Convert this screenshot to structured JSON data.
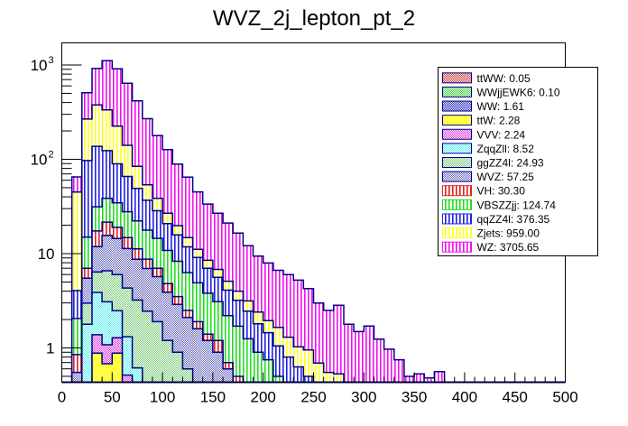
{
  "chart_data": {
    "type": "bar",
    "subtype": "stacked-histogram",
    "title": "WVZ_2j_lepton_pt_2",
    "xlabel": "",
    "ylabel": "",
    "xlim": [
      0,
      500
    ],
    "ylim": [
      0.44,
      1700
    ],
    "yscale": "log",
    "bin_width": 10,
    "x_ticks": [
      "0",
      "50",
      "100",
      "150",
      "200",
      "250",
      "300",
      "350",
      "400",
      "450",
      "500"
    ],
    "x_tick_values": [
      0,
      50,
      100,
      150,
      200,
      250,
      300,
      350,
      400,
      450,
      500
    ],
    "y_ticks": [
      {
        "value": 1,
        "label": "1",
        "exp": ""
      },
      {
        "value": 10,
        "label": "10",
        "exp": ""
      },
      {
        "value": 100,
        "label": "10",
        "exp": "2"
      },
      {
        "value": 1000,
        "label": "10",
        "exp": "3"
      }
    ],
    "legend_position": "top-right",
    "grid": false,
    "bins_low_edges": [
      0,
      10,
      20,
      30,
      40,
      50,
      60,
      70,
      80,
      90,
      100,
      110,
      120,
      130,
      140,
      150,
      160,
      170,
      180,
      190,
      200,
      210,
      220,
      230,
      240,
      250,
      260,
      270,
      280,
      290,
      300,
      310,
      320,
      330,
      340,
      350,
      360,
      370,
      380,
      390,
      400,
      410,
      420,
      430,
      440,
      450,
      460,
      470,
      480,
      490
    ],
    "series": [
      {
        "name": "ttWW",
        "legend": "ttWW: 0.05",
        "color": "#cc3333",
        "fill": "checker",
        "values": [
          0,
          0,
          0.01,
          0.01,
          0.01,
          0.01,
          0.005,
          0.005,
          0,
          0,
          0,
          0,
          0,
          0,
          0,
          0,
          0,
          0,
          0,
          0,
          0,
          0,
          0,
          0,
          0,
          0,
          0,
          0,
          0,
          0,
          0,
          0,
          0,
          0,
          0,
          0,
          0,
          0,
          0,
          0,
          0,
          0,
          0,
          0,
          0,
          0,
          0,
          0,
          0,
          0
        ]
      },
      {
        "name": "WWjjEWK6",
        "legend": "WWjjEWK6: 0.10",
        "color": "#33cc33",
        "fill": "checker",
        "values": [
          0,
          0,
          0.02,
          0.02,
          0.02,
          0.02,
          0.01,
          0.01,
          0,
          0,
          0,
          0,
          0,
          0,
          0,
          0,
          0,
          0,
          0,
          0,
          0,
          0,
          0,
          0,
          0,
          0,
          0,
          0,
          0,
          0,
          0,
          0,
          0,
          0,
          0,
          0,
          0,
          0,
          0,
          0,
          0,
          0,
          0,
          0,
          0,
          0,
          0,
          0,
          0,
          0
        ]
      },
      {
        "name": "WW",
        "legend": "WW: 1.61",
        "color": "#2222bb",
        "fill": "checker",
        "values": [
          0,
          0,
          0.2,
          0.3,
          0.3,
          0.3,
          0.2,
          0.2,
          0.1,
          0,
          0,
          0,
          0,
          0,
          0,
          0,
          0,
          0,
          0,
          0,
          0,
          0,
          0,
          0,
          0,
          0,
          0,
          0,
          0,
          0,
          0,
          0,
          0,
          0,
          0,
          0,
          0,
          0,
          0,
          0,
          0,
          0,
          0,
          0,
          0,
          0,
          0,
          0,
          0,
          0
        ]
      },
      {
        "name": "ttW",
        "legend": "ttW: 2.28",
        "color": "#ffff44",
        "fill": "solid",
        "values": [
          0,
          0,
          0,
          0.55,
          0.35,
          0.55,
          0,
          0,
          0,
          0,
          0,
          0,
          0,
          0,
          0,
          0,
          0,
          0,
          0,
          0,
          0,
          0,
          0,
          0,
          0,
          0,
          0,
          0,
          0,
          0,
          0,
          0,
          0,
          0,
          0,
          0,
          0,
          0,
          0,
          0,
          0,
          0,
          0,
          0,
          0,
          0,
          0,
          0,
          0,
          0
        ]
      },
      {
        "name": "VVV",
        "legend": "VVV: 2.24",
        "color": "#dd33dd",
        "fill": "checker",
        "values": [
          0,
          0,
          0.05,
          0.5,
          0.4,
          0.4,
          0.3,
          0.1,
          0.05,
          0,
          0,
          0,
          0,
          0,
          0,
          0,
          0,
          0,
          0,
          0,
          0,
          0,
          0,
          0,
          0,
          0,
          0,
          0,
          0,
          0,
          0,
          0,
          0,
          0,
          0,
          0,
          0,
          0,
          0,
          0,
          0,
          0,
          0,
          0,
          0,
          0,
          0,
          0,
          0,
          0
        ]
      },
      {
        "name": "ZqqZll",
        "legend": "ZqqZll: 8.52",
        "color": "#55eeee",
        "fill": "checker",
        "values": [
          0,
          0.05,
          1.5,
          2.5,
          2.0,
          1.2,
          0.8,
          0.3,
          0.1,
          0,
          0,
          0,
          0,
          0,
          0,
          0,
          0,
          0,
          0,
          0,
          0,
          0,
          0,
          0,
          0,
          0,
          0,
          0,
          0,
          0,
          0,
          0,
          0,
          0,
          0,
          0,
          0,
          0,
          0,
          0,
          0,
          0,
          0,
          0,
          0,
          0,
          0,
          0,
          0,
          0
        ]
      },
      {
        "name": "ggZZ4l",
        "legend": "ggZZ4l: 24.93",
        "color": "#77cc77",
        "fill": "checker",
        "values": [
          0,
          0.2,
          1.2,
          2.5,
          3.5,
          3.5,
          3.0,
          2.6,
          2.2,
          1.9,
          1.2,
          0.9,
          0.6,
          0.4,
          0.3,
          0.2,
          0.1,
          0.1,
          0.05,
          0.05,
          0,
          0,
          0,
          0,
          0,
          0,
          0,
          0,
          0,
          0,
          0,
          0,
          0,
          0,
          0,
          0,
          0,
          0,
          0,
          0,
          0,
          0,
          0,
          0,
          0,
          0,
          0,
          0,
          0,
          0
        ]
      },
      {
        "name": "WVZ",
        "legend": "WVZ: 57.25",
        "color": "#6666bb",
        "fill": "checker",
        "values": [
          0,
          0.3,
          2.5,
          5.5,
          9.0,
          8.5,
          7.0,
          5.5,
          4.5,
          3.8,
          2.7,
          2.0,
          1.5,
          1.2,
          0.9,
          0.7,
          0.5,
          0.3,
          0.2,
          0.1,
          0.1,
          0.05,
          0,
          0,
          0,
          0,
          0,
          0,
          0,
          0,
          0,
          0,
          0,
          0,
          0,
          0,
          0,
          0,
          0,
          0,
          0,
          0,
          0,
          0,
          0,
          0,
          0,
          0,
          0,
          0
        ]
      },
      {
        "name": "VH",
        "legend": "VH: 30.30",
        "color": "#dd2222",
        "fill": "vlines",
        "values": [
          0,
          0.3,
          1.5,
          5.5,
          6.0,
          4.5,
          3.5,
          2.5,
          1.8,
          1.3,
          0.9,
          0.6,
          0.4,
          0.3,
          0.2,
          0.3,
          0.1,
          0.1,
          0.1,
          0.05,
          0.1,
          0,
          0,
          0,
          0,
          0,
          0,
          0,
          0,
          0,
          0,
          0,
          0,
          0,
          0,
          0,
          0,
          0,
          0,
          0,
          0,
          0,
          0,
          0,
          0,
          0,
          0,
          0,
          0,
          0
        ]
      },
      {
        "name": "VBSZZjj",
        "legend": "VBSZZjj: 124.74",
        "color": "#22dd22",
        "fill": "vlines",
        "values": [
          0,
          1.2,
          8.0,
          14.0,
          17.0,
          15.5,
          13.0,
          11.0,
          9.0,
          7.5,
          6.0,
          4.8,
          3.8,
          3.0,
          2.4,
          1.9,
          1.5,
          1.2,
          0.9,
          0.7,
          0.55,
          0.45,
          0.35,
          0.28,
          0.22,
          0.17,
          0.13,
          0.1,
          0.08,
          0.06,
          0.05,
          0.04,
          0.03,
          0.02,
          0,
          0,
          0,
          0,
          0,
          0,
          0,
          0,
          0,
          0,
          0,
          0,
          0,
          0,
          0,
          0
        ]
      },
      {
        "name": "qqZZ4l",
        "legend": "qqZZ4l: 376.35",
        "color": "#2222dd",
        "fill": "vlines",
        "values": [
          0,
          2.0,
          82.0,
          106.0,
          85.0,
          55.0,
          38.0,
          27.0,
          19.0,
          14.0,
          10.0,
          7.5,
          5.5,
          4.2,
          3.2,
          2.5,
          1.9,
          1.5,
          1.2,
          0.9,
          0.7,
          0.55,
          0.45,
          0.35,
          0.28,
          0.22,
          0.17,
          0.13,
          0.1,
          0.08,
          0.06,
          0.05,
          0.04,
          0.03,
          0,
          0,
          0,
          0,
          0,
          0,
          0,
          0,
          0,
          0,
          0,
          0,
          0,
          0,
          0,
          0
        ]
      },
      {
        "name": "Zjets",
        "legend": "Zjets: 959.00",
        "color": "#ffff22",
        "fill": "vlines",
        "values": [
          0,
          41.0,
          170.0,
          240.0,
          210.0,
          135.0,
          75.0,
          35.0,
          17.0,
          10.0,
          6.0,
          4.0,
          3.0,
          2.0,
          1.5,
          1.2,
          1.0,
          0.8,
          0.7,
          0.6,
          0.5,
          0.6,
          0.5,
          0.4,
          0.45,
          0.3,
          0.25,
          0.3,
          0.2,
          0.15,
          0.3,
          0.05,
          0.2,
          0,
          0,
          0,
          0,
          0,
          0,
          0,
          0,
          0,
          0,
          0,
          0,
          0,
          0,
          0,
          0,
          0
        ]
      },
      {
        "name": "WZ",
        "legend": "WZ: 3705.65",
        "color": "#ee11ee",
        "fill": "vlines",
        "values": [
          0,
          20.0,
          240.0,
          540.0,
          775.0,
          685.0,
          500.0,
          332.0,
          216.0,
          140.0,
          100.0,
          69.0,
          50.0,
          34.0,
          25.0,
          20.0,
          16.0,
          12.5,
          9.0,
          7.0,
          6.0,
          5.0,
          4.7,
          4.2,
          3.3,
          2.3,
          1.95,
          2.3,
          1.4,
          1.2,
          1.3,
          1.1,
          0.7,
          0.7,
          0.5,
          0.53,
          0.48,
          0.56,
          0,
          0,
          0,
          0,
          0,
          0,
          0,
          0,
          0,
          0,
          0,
          0
        ]
      }
    ]
  }
}
